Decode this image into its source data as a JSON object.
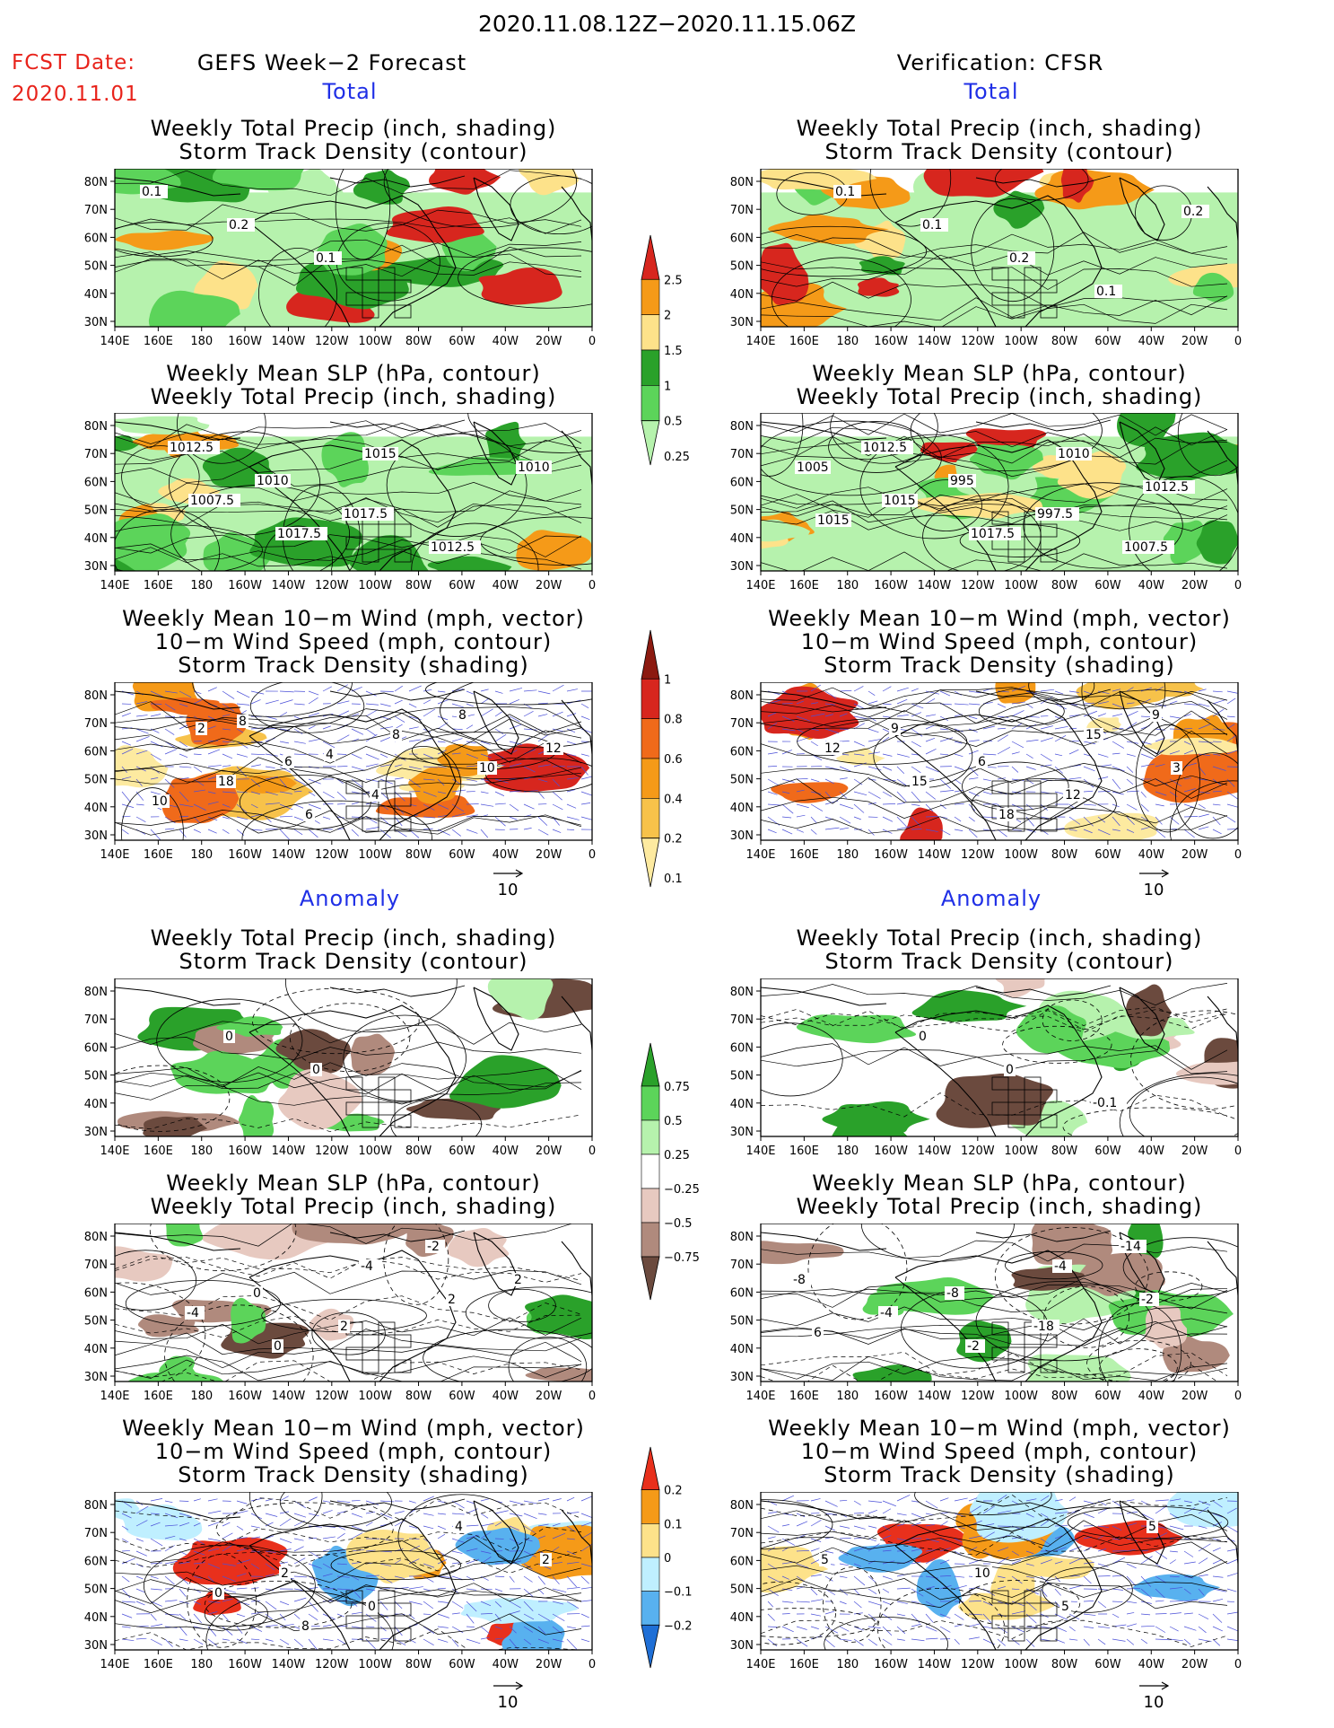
{
  "header": {
    "date_range": "2020.11.08.12Z−2020.11.15.06Z",
    "fcst_label": "FCST Date:",
    "fcst_date": "2020.11.01",
    "left_title": "GEFS Week−2 Forecast",
    "right_title": "Verification: CFSR",
    "total_label": "Total",
    "anomaly_label": "Anomaly"
  },
  "axes": {
    "lat_labels": [
      "80N",
      "70N",
      "60N",
      "50N",
      "40N",
      "30N"
    ],
    "lon_labels": [
      "140E",
      "160E",
      "180",
      "160W",
      "140W",
      "120W",
      "100W",
      "80W",
      "60W",
      "40W",
      "20W",
      "0"
    ]
  },
  "panel_titles": {
    "precip_storm": [
      "Weekly Total Precip (inch, shading)",
      "Storm Track Density (contour)"
    ],
    "slp_precip": [
      "Weekly Mean SLP (hPa, contour)",
      "Weekly Total Precip (inch, shading)"
    ],
    "wind_storm": [
      "Weekly Mean 10−m Wind (mph, vector)",
      "10−m Wind Speed (mph, contour)",
      "Storm Track Density (shading)"
    ]
  },
  "vector_ref": "10",
  "colorbars": {
    "precip_total": {
      "labels": [
        "2.5",
        "2",
        "1.5",
        "1",
        "0.5",
        "0.25"
      ],
      "colors": [
        "#d7261e",
        "#f59a18",
        "#fde28a",
        "#2aa12a",
        "#5cd45a",
        "#b6f2ad"
      ]
    },
    "storm_total": {
      "labels": [
        "1",
        "0.8",
        "0.6",
        "0.4",
        "0.2",
        "0.1"
      ],
      "colors": [
        "#8c1a10",
        "#d7261e",
        "#f06a1a",
        "#f59a18",
        "#f7c24a",
        "#fdeaa0"
      ]
    },
    "precip_anom": {
      "labels": [
        "0.75",
        "0.5",
        "0.25",
        "−0.25",
        "−0.5",
        "−0.75"
      ],
      "colors": [
        "#2aa12a",
        "#5cd45a",
        "#b6f2ad",
        "#ffffff",
        "#e7c9c0",
        "#b08a7d",
        "#6b4a3e"
      ]
    },
    "storm_anom": {
      "labels": [
        "0.2",
        "0.1",
        "0",
        "−0.1",
        "−0.2"
      ],
      "colors": [
        "#e8301c",
        "#f59a18",
        "#fde28a",
        "#bfefff",
        "#58b1ef",
        "#1f6fd6"
      ]
    }
  },
  "panels": {
    "fc_precip": [
      "0.1",
      "0.2",
      "0.1"
    ],
    "fc_slp": [
      "1012.5",
      "1010",
      "1017.5",
      "1012.5",
      "1010",
      "1007.5",
      "1017.5",
      "1015"
    ],
    "fc_wind": [
      "2",
      "6",
      "4",
      "8",
      "12",
      "18",
      "6",
      "8",
      "10",
      "10",
      "8",
      "4"
    ],
    "vf_precip": [
      "0.1",
      "0.1",
      "0.2",
      "0.1",
      "0.2"
    ],
    "vf_slp": [
      "1012.5",
      "995",
      "997.5",
      "1007.5",
      "1005",
      "1015",
      "1017.5",
      "1010",
      "1012.5",
      "1015"
    ],
    "vf_wind": [
      "9",
      "6",
      "12",
      "9",
      "12",
      "15",
      "18",
      "15",
      "3"
    ],
    "fa_precip": [
      "0",
      "0"
    ],
    "fa_slp": [
      "0",
      "2",
      "-2",
      "2",
      "-4",
      "0",
      "-4",
      "2"
    ],
    "fa_wind": [
      "2",
      "0",
      "4",
      "2",
      "0",
      "8"
    ],
    "va_precip": [
      "0",
      "0",
      "-0.1"
    ],
    "va_slp": [
      "-8",
      "-18",
      "-14",
      "-8",
      "-4",
      "-2",
      "-4",
      "-2",
      "6"
    ],
    "va_wind": [
      "10",
      "5",
      "5",
      "5"
    ]
  }
}
